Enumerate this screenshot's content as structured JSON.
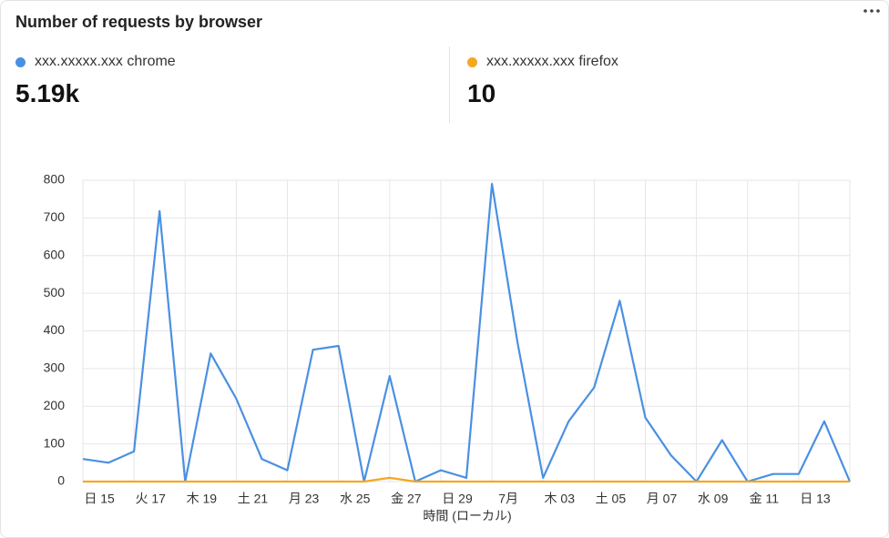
{
  "chart_data": {
    "type": "line",
    "title": "Number of requests by browser",
    "x_label": "時間 (ローカル)",
    "categories": [
      null,
      "日 15",
      null,
      "火 17",
      null,
      "木 19",
      null,
      "土 21",
      null,
      "月 23",
      null,
      "水 25",
      null,
      "金 27",
      null,
      "日 29",
      null,
      "7月",
      null,
      "木 03",
      null,
      "土 05",
      null,
      "月 07",
      null,
      "水 09",
      null,
      "金 11",
      null,
      "日 13",
      null
    ],
    "series": [
      {
        "name": "xxx.xxxxx.xxx chrome",
        "color": "#4a90e2",
        "summary": "5.19k",
        "values": [
          60,
          50,
          80,
          718,
          0,
          340,
          220,
          60,
          30,
          350,
          360,
          0,
          280,
          0,
          30,
          10,
          790,
          370,
          10,
          160,
          250,
          480,
          170,
          70,
          0,
          110,
          0,
          20,
          20,
          160,
          0
        ]
      },
      {
        "name": "xxx.xxxxx.xxx firefox",
        "color": "#f5a623",
        "summary": "10",
        "values": [
          0,
          0,
          0,
          0,
          0,
          0,
          0,
          0,
          0,
          0,
          0,
          0,
          10,
          0,
          0,
          0,
          0,
          0,
          0,
          0,
          0,
          0,
          0,
          0,
          0,
          0,
          0,
          0,
          0,
          0,
          0
        ]
      }
    ],
    "ylim": [
      0,
      800
    ],
    "yticks": [
      0,
      100,
      200,
      300,
      400,
      500,
      600,
      700,
      800
    ],
    "grid": true
  }
}
